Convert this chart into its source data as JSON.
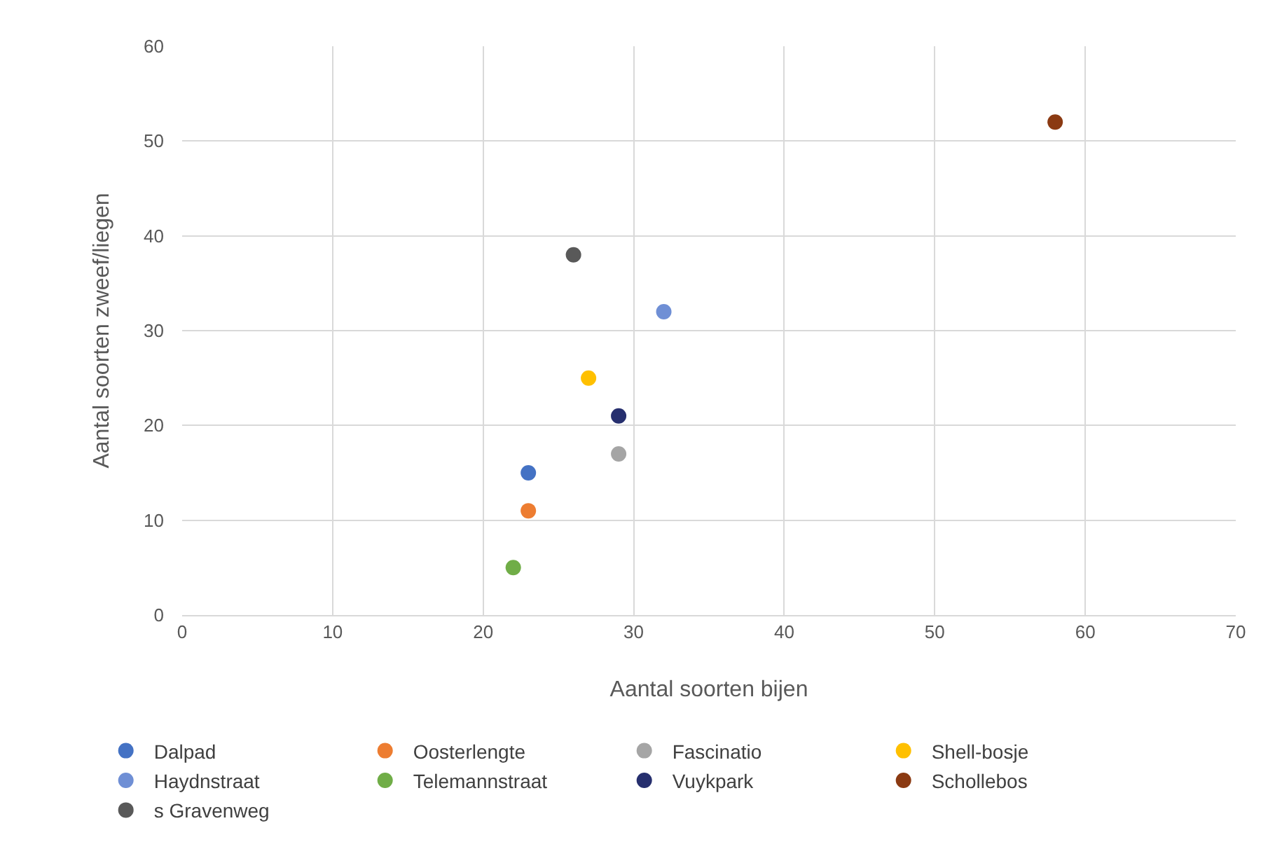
{
  "chart_data": {
    "type": "scatter",
    "xlabel": "Aantal soorten bijen",
    "ylabel": "Aantal soorten zweef/liegen",
    "xlim": [
      0,
      70
    ],
    "xticks": [
      0,
      10,
      20,
      30,
      40,
      50,
      60,
      70
    ],
    "ylim": [
      0,
      60
    ],
    "yticks": [
      0,
      10,
      20,
      30,
      40,
      50,
      60
    ],
    "grid": true,
    "legend": "bottom",
    "marker": "circle",
    "series": [
      {
        "name": "Dalpad",
        "color": "#4472c4",
        "x": [
          23
        ],
        "values": [
          15
        ]
      },
      {
        "name": "Oosterlengte",
        "color": "#ed7d31",
        "x": [
          23
        ],
        "values": [
          11
        ]
      },
      {
        "name": "Fascinatio",
        "color": "#a5a5a5",
        "x": [
          29
        ],
        "values": [
          17
        ]
      },
      {
        "name": "Shell-bosje",
        "color": "#ffc000",
        "x": [
          27
        ],
        "values": [
          25
        ]
      },
      {
        "name": "Haydnstraat",
        "color": "#6f8fd5",
        "x": [
          32
        ],
        "values": [
          32
        ]
      },
      {
        "name": "Telemannstraat",
        "color": "#70ad47",
        "x": [
          22
        ],
        "values": [
          5
        ]
      },
      {
        "name": "Vuykpark",
        "color": "#262f6e",
        "x": [
          29
        ],
        "values": [
          21
        ]
      },
      {
        "name": "Schollebos",
        "color": "#8b3a12",
        "x": [
          58
        ],
        "values": [
          52
        ]
      },
      {
        "name": "s Gravenweg",
        "color": "#595959",
        "x": [
          26
        ],
        "values": [
          38
        ]
      }
    ]
  }
}
